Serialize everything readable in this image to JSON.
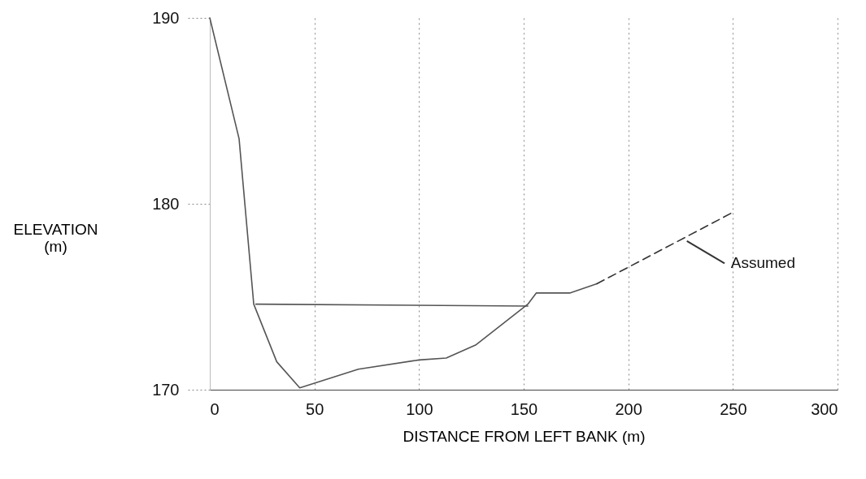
{
  "chart_data": {
    "type": "line",
    "xlabel": "DISTANCE FROM LEFT BANK (m)",
    "ylabel": "ELEVATION (m)",
    "xlim": [
      0,
      300
    ],
    "xticks": [
      0,
      50,
      100,
      150,
      200,
      250,
      300
    ],
    "ylim": [
      170,
      190
    ],
    "yticks": [
      170,
      180,
      190
    ],
    "grid": "x",
    "series": [
      {
        "color": "#555555",
        "line_style": "solid",
        "x": [
          0,
          14,
          21,
          32,
          43,
          71,
          100,
          113,
          127,
          152,
          156,
          172,
          185
        ],
        "values": [
          190,
          183.5,
          174.6,
          171.5,
          170.1,
          171.1,
          171.6,
          171.7,
          172.4,
          174.6,
          175.2,
          175.2,
          175.7
        ]
      },
      {
        "color": "#333333",
        "line_style": "dashed",
        "x": [
          185,
          251
        ],
        "values": [
          175.7,
          179.6
        ]
      },
      {
        "color": "#555555",
        "line_style": "solid",
        "x": [
          22,
          152
        ],
        "values": [
          174.6,
          174.5
        ]
      }
    ],
    "annotations": [
      {
        "text": "Assumed",
        "x": 228,
        "y": 178
      }
    ]
  }
}
